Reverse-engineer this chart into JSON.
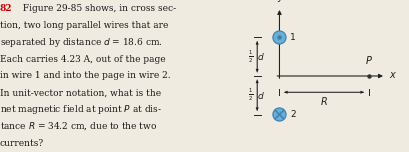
{
  "bg_color": "#f0ebe0",
  "text_lines": [
    [
      "82",
      "  Figure 29-85 shows, in cross sec-"
    ],
    [
      "",
      "tion, two long parallel wires that are"
    ],
    [
      "",
      "separated by distance \\(d = 18.6\\) cm."
    ],
    [
      "",
      "Each carries 4.23 A, out of the page"
    ],
    [
      "",
      "in wire 1 and into the page in wire 2."
    ],
    [
      "",
      "In unit-vector notation, what is the"
    ],
    [
      "",
      "net magnetic field at point \\(P\\) at dis-"
    ],
    [
      "",
      "tance \\(R = 34.2\\) cm, due to the two"
    ],
    [
      "",
      "currents?"
    ]
  ],
  "number_color": "#cc0000",
  "text_color": "#1a1a1a",
  "axis_color": "#222222",
  "wire_color": "#6aaed6",
  "wire_edge_color": "#3a7db0",
  "figsize": [
    4.09,
    1.52
  ],
  "dpi": 100
}
